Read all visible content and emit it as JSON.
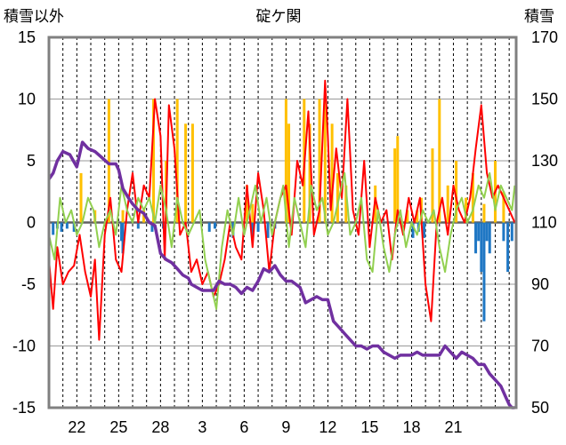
{
  "chart_data": {
    "type": "line",
    "title": "碇ケ関",
    "ylabel_left": "積雪以外",
    "ylabel_right": "積雪",
    "left_axis": {
      "range": [
        -15,
        15
      ],
      "ticks": [
        "15",
        "10",
        "5",
        "0",
        "-5",
        "-10",
        "-15"
      ]
    },
    "right_axis": {
      "range": [
        50,
        170
      ],
      "ticks": [
        "170",
        "150",
        "130",
        "110",
        "90",
        "70",
        "50"
      ]
    },
    "x_axis": {
      "range": [
        20,
        53.5
      ],
      "ticks": [
        {
          "x": 22,
          "label": "22"
        },
        {
          "x": 25,
          "label": "25"
        },
        {
          "x": 28,
          "label": "28"
        },
        {
          "x": 31,
          "label": "3"
        },
        {
          "x": 34,
          "label": "6"
        },
        {
          "x": 37,
          "label": "9"
        },
        {
          "x": 40,
          "label": "12"
        },
        {
          "x": 43,
          "label": "15"
        },
        {
          "x": 46,
          "label": "18"
        },
        {
          "x": 49,
          "label": "21"
        }
      ]
    },
    "grid": "vertical dashed, horizontal solid",
    "colors": {
      "temperature": "#ff0000",
      "precipitation": "#ffc000",
      "snow_change": "#1f77c4",
      "temp_anomaly": "#92d050",
      "snow_depth": "#7030a0",
      "frame": "#808080"
    },
    "series": [
      {
        "key": "temperature",
        "axis": "left",
        "x": [
          20,
          20.3,
          20.6,
          21,
          21.4,
          21.8,
          22.2,
          22.6,
          23,
          23.3,
          23.6,
          24,
          24.4,
          24.8,
          25.2,
          25.6,
          26,
          26.4,
          26.8,
          27.2,
          27.6,
          28,
          28.3,
          28.6,
          29,
          29.4,
          29.8,
          30.2,
          30.6,
          31,
          31.4,
          31.8,
          32.2,
          32.6,
          33,
          33.4,
          33.8,
          34.2,
          34.6,
          35,
          35.4,
          35.8,
          36.2,
          36.6,
          37,
          37.4,
          37.8,
          38.2,
          38.6,
          39,
          39.4,
          39.8,
          40,
          40.2,
          40.6,
          41,
          41.4,
          41.8,
          42.2,
          42.6,
          43,
          43.4,
          43.8,
          44.2,
          44.6,
          45,
          45.4,
          45.8,
          46.2,
          46.6,
          47,
          47.4,
          47.8,
          48.2,
          48.6,
          49,
          49.4,
          49.8,
          50.2,
          50.6,
          51,
          51.4,
          51.8,
          52.2,
          52.6,
          53,
          53.4
        ],
        "y": [
          -3,
          -7,
          -2,
          -5,
          -4,
          -3.5,
          -1,
          -4,
          -6,
          -3,
          -9.5,
          -1,
          2,
          -3,
          -4,
          1,
          4,
          0,
          3,
          2,
          10,
          7,
          -3,
          9.5,
          6,
          -1,
          0,
          -4,
          -3,
          -5,
          -4,
          -6,
          -5,
          -3,
          0,
          -2,
          -3,
          3,
          -2,
          4,
          1,
          -4,
          0,
          2,
          3,
          -1,
          5,
          3,
          9,
          -1,
          1,
          11.5,
          7,
          1,
          6,
          2,
          10,
          1,
          -1,
          5,
          -2,
          2,
          0,
          1,
          -3,
          1,
          -1,
          2,
          0,
          2,
          -5,
          -8,
          0,
          2,
          -1,
          3,
          1,
          0,
          2,
          6,
          9.5,
          4,
          2,
          3,
          2,
          1,
          0
        ]
      },
      {
        "key": "precipitation",
        "axis": "left",
        "x": [
          22.3,
          23.3,
          24.3,
          25.3,
          26.8,
          27.5,
          28.4,
          29.2,
          29.8,
          30.3,
          34.2,
          34.6,
          37,
          37.2,
          38.3,
          38.7,
          39.4,
          39.8,
          40.3,
          40.7,
          41.3,
          43.4,
          44.8,
          45,
          45.7,
          46.4,
          46.7,
          47.5,
          48,
          48.6,
          49.2,
          49.9,
          50.4,
          51.2,
          52,
          52.6
        ],
        "y": [
          4,
          1,
          10,
          1,
          1,
          10,
          5,
          10,
          8,
          8,
          3,
          1.5,
          10,
          8,
          10,
          8,
          10,
          10,
          8,
          4,
          3,
          3,
          6,
          7,
          1,
          1,
          2,
          6,
          10,
          3,
          5,
          2,
          4,
          1.5,
          5,
          2.5
        ]
      },
      {
        "key": "snow_change",
        "axis": "right",
        "x": [
          20.3,
          20.6,
          20.9,
          21.3,
          21.8,
          25.2,
          25.3,
          26.4,
          27.4,
          28.2,
          31.5,
          31.9,
          33.2,
          34.6,
          35,
          35.7,
          36.2,
          46.1,
          46.5,
          46.9,
          50.6,
          50.8,
          51,
          51.2,
          51.4,
          51.6,
          52.6,
          52.9,
          53.2
        ],
        "y": [
          -4,
          -2,
          -3,
          -2,
          -3,
          -6,
          -10,
          -2,
          -3,
          -2,
          -3,
          -2,
          -5,
          -5,
          -3,
          -5,
          -2,
          -5,
          -3,
          -5,
          -10,
          -6,
          -16,
          -32,
          -6,
          -10,
          -6,
          -16,
          -6
        ]
      },
      {
        "key": "temp_anomaly",
        "axis": "left",
        "x": [
          20,
          20.4,
          20.8,
          21.2,
          21.6,
          22,
          22.4,
          22.8,
          23.2,
          23.6,
          24,
          24.4,
          24.8,
          25.2,
          25.6,
          26,
          26.4,
          26.8,
          27.2,
          27.6,
          28,
          28.4,
          28.8,
          29.2,
          29.6,
          30,
          30.4,
          30.8,
          31.2,
          31.6,
          32,
          32.4,
          32.8,
          33.2,
          33.6,
          34,
          34.4,
          34.8,
          35.2,
          35.6,
          36,
          36.4,
          36.8,
          37.2,
          37.6,
          38,
          38.4,
          38.8,
          39.2,
          39.6,
          40,
          40.4,
          40.8,
          41.2,
          41.6,
          42,
          42.4,
          42.8,
          43.2,
          43.6,
          44,
          44.4,
          44.8,
          45.2,
          45.6,
          46,
          46.4,
          46.8,
          47.2,
          47.6,
          48,
          48.4,
          48.8,
          49.2,
          49.6,
          50,
          50.4,
          50.8,
          51.2,
          51.6,
          52,
          52.4,
          52.8,
          53.2,
          53.4
        ],
        "y": [
          -1,
          -3,
          2,
          0,
          1,
          -1,
          0,
          2,
          1,
          -2,
          0,
          1,
          -1,
          3,
          1,
          0,
          2,
          1,
          2,
          0,
          3,
          1,
          -2,
          2,
          0,
          -1,
          0,
          1,
          -3,
          -5,
          -7,
          -2,
          1,
          -1,
          2,
          -1,
          1,
          3,
          0,
          2,
          -1,
          1,
          3,
          -2,
          2,
          0,
          -2,
          3,
          1,
          2,
          -1,
          0,
          2,
          4,
          -1,
          0,
          2,
          -3,
          -4,
          1,
          -2,
          -4,
          -1,
          1,
          -2,
          0,
          -1,
          1,
          0,
          1,
          -2,
          -4,
          -1,
          1,
          2,
          0,
          1,
          3,
          2,
          4,
          1,
          3,
          2,
          1,
          3
        ]
      },
      {
        "key": "snow_depth",
        "axis": "right",
        "x": [
          20,
          20.3,
          20.6,
          21,
          21.5,
          22,
          22.4,
          22.8,
          23.3,
          23.8,
          24.3,
          24.8,
          25,
          25.3,
          25.7,
          26,
          26.4,
          26.8,
          27.2,
          27.6,
          28,
          28.4,
          28.8,
          29.2,
          29.6,
          30,
          30.2,
          30.6,
          31,
          31.4,
          31.8,
          32.2,
          32.6,
          33,
          33.4,
          33.8,
          34.2,
          34.6,
          35,
          35.4,
          35.8,
          36.2,
          36.6,
          37,
          37.4,
          38,
          38.4,
          38.8,
          39.2,
          39.6,
          40,
          40.4,
          40.8,
          41.2,
          41.6,
          42,
          42.4,
          42.8,
          43.2,
          43.6,
          44,
          44.4,
          44.8,
          45.2,
          45.6,
          46,
          46.4,
          46.8,
          47.2,
          47.6,
          48,
          48.4,
          48.8,
          49.2,
          49.6,
          50,
          50.4,
          50.8,
          51.2,
          51.6,
          52,
          52.4,
          52.8,
          53,
          53.2,
          53.4
        ],
        "y": [
          124,
          126,
          130,
          133,
          132,
          128,
          136,
          134,
          133,
          131,
          129,
          129,
          127,
          121,
          118,
          116,
          114,
          113,
          110,
          109,
          100,
          98,
          97,
          95,
          93,
          92,
          90,
          89,
          88,
          88,
          88,
          91,
          90,
          90,
          89,
          87,
          89,
          88,
          91,
          95,
          94,
          96,
          93,
          91,
          91,
          89,
          84,
          85,
          86,
          85,
          85,
          78,
          76,
          74,
          72,
          70,
          70,
          69,
          70,
          70,
          68,
          67,
          66,
          67,
          67,
          67,
          68,
          67,
          67,
          67,
          67,
          70,
          68,
          66,
          68,
          67,
          66,
          64,
          64,
          61,
          59,
          57,
          53,
          51,
          50,
          50
        ]
      }
    ]
  }
}
